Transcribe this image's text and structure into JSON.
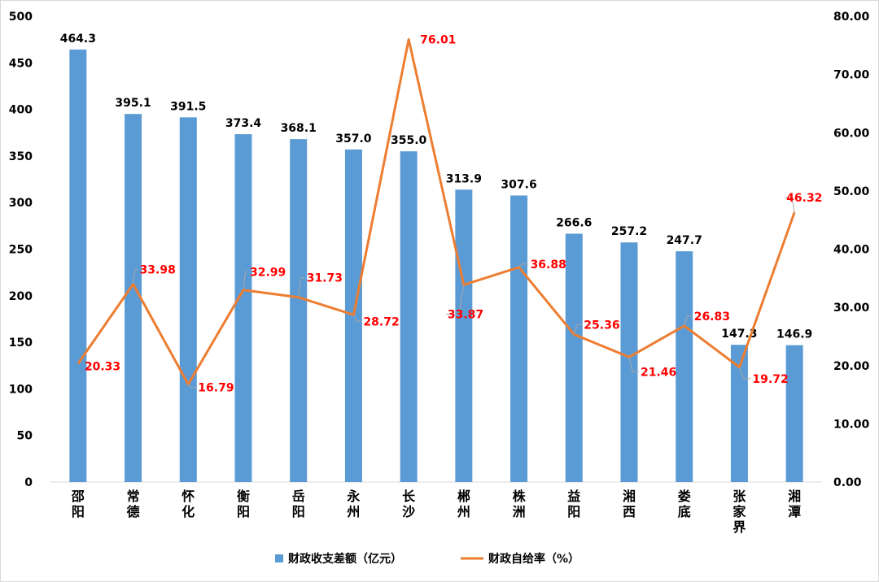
{
  "chart_data": {
    "type": "bar",
    "categories": [
      "邵阳",
      "常德",
      "怀化",
      "衡阳",
      "岳阳",
      "永州",
      "长沙",
      "郴州",
      "株洲",
      "益阳",
      "湘西",
      "娄底",
      "张家界",
      "湘潭"
    ],
    "series": [
      {
        "name": "财政收支差额（亿元）",
        "type": "bar",
        "axis": "left",
        "color": "#5b9bd5",
        "values": [
          464.3,
          395.1,
          391.5,
          373.4,
          368.1,
          357.0,
          355.0,
          313.9,
          307.6,
          266.6,
          257.2,
          247.7,
          147.3,
          146.9
        ],
        "labels": [
          "464.3",
          "395.1",
          "391.5",
          "373.4",
          "368.1",
          "357.0",
          "355.0",
          "313.9",
          "307.6",
          "266.6",
          "257.2",
          "247.7",
          "147.3",
          "146.9"
        ]
      },
      {
        "name": "财政自给率（%）",
        "type": "line",
        "axis": "right",
        "color": "#ed7d31",
        "values": [
          20.33,
          33.98,
          16.79,
          32.99,
          31.73,
          28.72,
          76.01,
          33.87,
          36.88,
          25.36,
          21.46,
          26.83,
          19.72,
          46.32
        ],
        "labels": [
          "20.33",
          "33.98",
          "16.79",
          "32.99",
          "31.73",
          "28.72",
          "76.01",
          "33.87",
          "36.88",
          "25.36",
          "21.46",
          "26.83",
          "19.72",
          "46.32"
        ]
      }
    ],
    "y_left": {
      "ylim": [
        0,
        500
      ],
      "ticks": [
        0,
        50,
        100,
        150,
        200,
        250,
        300,
        350,
        400,
        450,
        500
      ],
      "tick_labels": [
        "0",
        "50",
        "100",
        "150",
        "200",
        "250",
        "300",
        "350",
        "400",
        "450",
        "500"
      ]
    },
    "y_right": {
      "ylim": [
        0,
        80
      ],
      "ticks": [
        0,
        10,
        20,
        30,
        40,
        50,
        60,
        70,
        80
      ],
      "tick_labels": [
        "0.00",
        "10.00",
        "20.00",
        "30.00",
        "40.00",
        "50.00",
        "60.00",
        "70.00",
        "80.00"
      ]
    },
    "grid": false,
    "legend": "bottom",
    "title": ""
  }
}
